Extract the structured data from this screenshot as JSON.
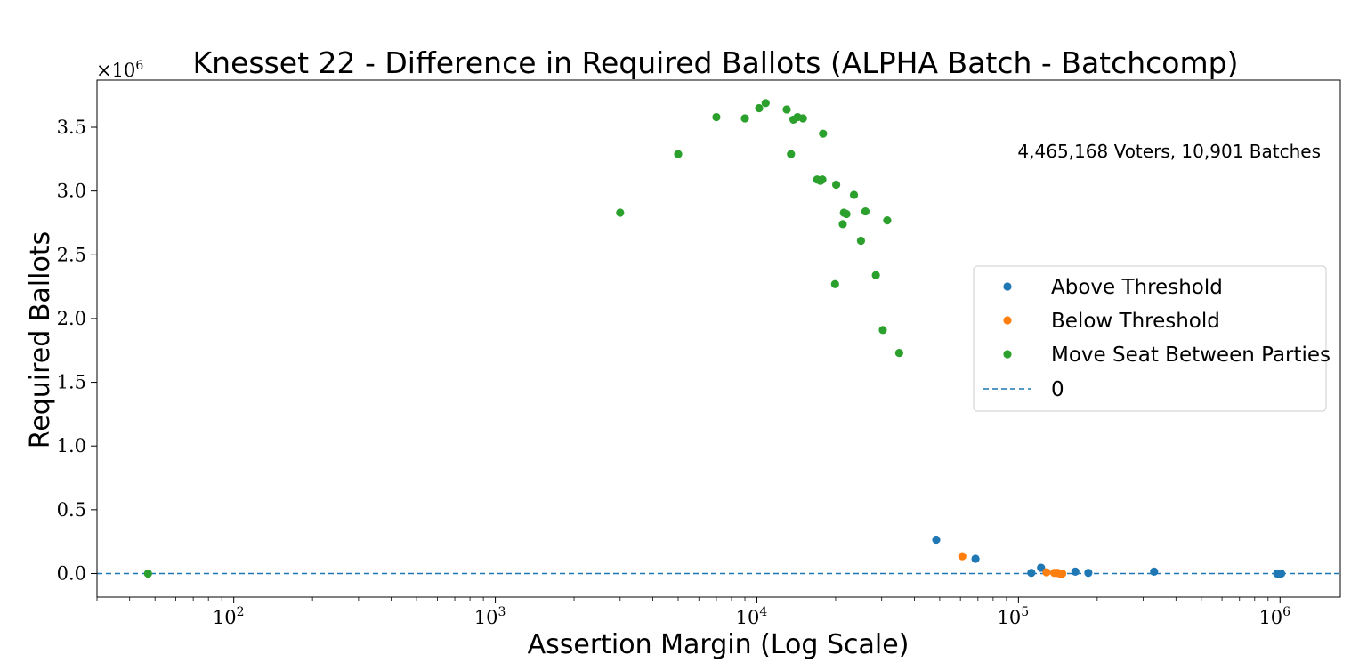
{
  "chart_data": {
    "type": "scatter",
    "title": "Knesset 22 - Difference in Required Ballots (ALPHA Batch - Batchcomp)",
    "xlabel": "Assertion Margin (Log Scale)",
    "ylabel": "Required Ballots",
    "x_scale": "log",
    "xlim": [
      30,
      1700000
    ],
    "ylim": [
      -185000,
      3870000
    ],
    "y_multiplier_label": "×10^6",
    "x_ticks": [
      {
        "value": 100,
        "label": "10^2"
      },
      {
        "value": 1000,
        "label": "10^3"
      },
      {
        "value": 10000,
        "label": "10^4"
      },
      {
        "value": 100000,
        "label": "10^5"
      },
      {
        "value": 1000000,
        "label": "10^6"
      }
    ],
    "y_ticks": [
      {
        "value": 0,
        "label": "0.0"
      },
      {
        "value": 500000,
        "label": "0.5"
      },
      {
        "value": 1000000,
        "label": "1.0"
      },
      {
        "value": 1500000,
        "label": "1.5"
      },
      {
        "value": 2000000,
        "label": "2.0"
      },
      {
        "value": 2500000,
        "label": "2.5"
      },
      {
        "value": 3000000,
        "label": "3.0"
      },
      {
        "value": 3500000,
        "label": "3.5"
      }
    ],
    "annotation": "4,465,168 Voters, 10,901 Batches",
    "legend_position": "center-right",
    "series": [
      {
        "name": "Above Threshold",
        "color": "#1f77b4",
        "points": [
          [
            48500,
            265000
          ],
          [
            68500,
            115000
          ],
          [
            112000,
            5000
          ],
          [
            122000,
            45000
          ],
          [
            165000,
            15000
          ],
          [
            185000,
            5000
          ],
          [
            330000,
            15000
          ],
          [
            975000,
            0
          ],
          [
            995000,
            0
          ],
          [
            1010000,
            0
          ]
        ]
      },
      {
        "name": "Below Threshold",
        "color": "#ff7f0e",
        "points": [
          [
            61000,
            135000
          ],
          [
            128000,
            10000
          ],
          [
            137000,
            5000
          ],
          [
            141000,
            5000
          ],
          [
            144000,
            0
          ],
          [
            147000,
            0
          ]
        ]
      },
      {
        "name": "Move Seat Between Parties",
        "color": "#2ca02c",
        "points": [
          [
            47,
            0
          ],
          [
            3000,
            2830000
          ],
          [
            5000,
            3290000
          ],
          [
            7000,
            3580000
          ],
          [
            9000,
            3570000
          ],
          [
            10200,
            3650000
          ],
          [
            10800,
            3690000
          ],
          [
            13000,
            3640000
          ],
          [
            13500,
            3290000
          ],
          [
            13800,
            3560000
          ],
          [
            14300,
            3580000
          ],
          [
            15000,
            3570000
          ],
          [
            17000,
            3090000
          ],
          [
            17500,
            3080000
          ],
          [
            17800,
            3090000
          ],
          [
            17900,
            3450000
          ],
          [
            19900,
            2270000
          ],
          [
            20100,
            3050000
          ],
          [
            21300,
            2740000
          ],
          [
            21500,
            2830000
          ],
          [
            22000,
            2820000
          ],
          [
            23500,
            2970000
          ],
          [
            25000,
            2610000
          ],
          [
            26000,
            2840000
          ],
          [
            28500,
            2340000
          ],
          [
            30300,
            1910000
          ],
          [
            31500,
            2770000
          ],
          [
            35000,
            1730000
          ]
        ]
      }
    ],
    "reference_line": {
      "name": "0",
      "y": 0,
      "color": "#1f77b4",
      "style": "dashed"
    }
  }
}
